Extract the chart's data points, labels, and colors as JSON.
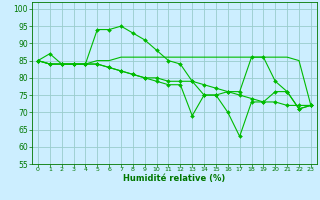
{
  "xlabel": "Humidité relative (%)",
  "xlim": [
    -0.5,
    23.5
  ],
  "ylim": [
    55,
    102
  ],
  "yticks": [
    55,
    60,
    65,
    70,
    75,
    80,
    85,
    90,
    95,
    100
  ],
  "xticks": [
    0,
    1,
    2,
    3,
    4,
    5,
    6,
    7,
    8,
    9,
    10,
    11,
    12,
    13,
    14,
    15,
    16,
    17,
    18,
    19,
    20,
    21,
    22,
    23
  ],
  "bg_color": "#cceeff",
  "grid_color": "#99cccc",
  "line_color": "#00bb00",
  "lines": [
    [
      85,
      87,
      84,
      84,
      84,
      94,
      94,
      95,
      93,
      91,
      88,
      85,
      84,
      79,
      75,
      75,
      76,
      76,
      86,
      86,
      79,
      76,
      71,
      72
    ],
    [
      85,
      84,
      84,
      84,
      84,
      85,
      85,
      86,
      86,
      86,
      86,
      86,
      86,
      86,
      86,
      86,
      86,
      86,
      86,
      86,
      86,
      86,
      85,
      72
    ],
    [
      85,
      84,
      84,
      84,
      84,
      84,
      83,
      82,
      81,
      80,
      79,
      78,
      78,
      69,
      75,
      75,
      70,
      63,
      73,
      73,
      76,
      76,
      71,
      72
    ],
    [
      85,
      84,
      84,
      84,
      84,
      84,
      83,
      82,
      81,
      80,
      80,
      79,
      79,
      79,
      78,
      77,
      76,
      75,
      74,
      73,
      73,
      72,
      72,
      72
    ]
  ],
  "marker_lines": [
    0,
    2,
    3
  ],
  "flat_line_idx": 1
}
